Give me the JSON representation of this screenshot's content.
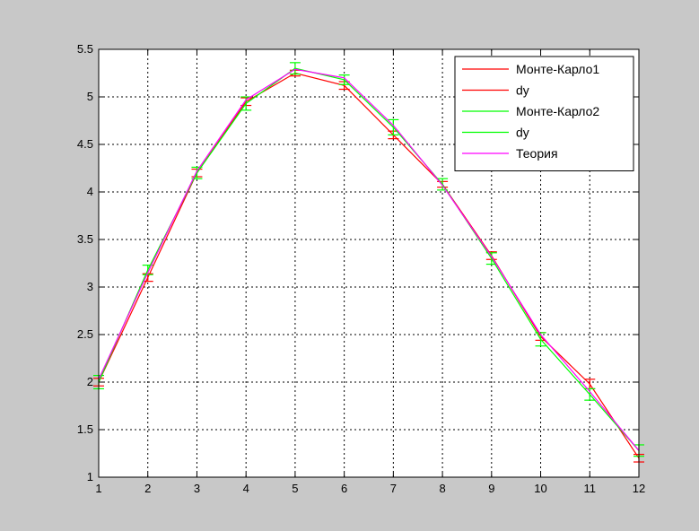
{
  "chart_data": {
    "type": "line",
    "title": "",
    "xlabel": "",
    "ylabel": "",
    "xlim": [
      1,
      12
    ],
    "ylim": [
      1,
      5.5
    ],
    "xticks": [
      1,
      2,
      3,
      4,
      5,
      6,
      7,
      8,
      9,
      10,
      11,
      12
    ],
    "yticks": [
      1,
      1.5,
      2,
      2.5,
      3,
      3.5,
      4,
      4.5,
      5,
      5.5
    ],
    "xtick_labels": [
      "1",
      "2",
      "3",
      "4",
      "5",
      "6",
      "7",
      "8",
      "9",
      "10",
      "11",
      "12"
    ],
    "ytick_labels": [
      "1",
      "1.5",
      "2",
      "2.5",
      "3",
      "3.5",
      "4",
      "4.5",
      "5",
      "5.5"
    ],
    "grid": true,
    "grid_style": "dotted",
    "legend_position": "top-right",
    "legend": [
      "Монте-Карло1",
      "dy",
      "Монте-Карло2",
      "dy",
      "Теория"
    ],
    "x": [
      1,
      2,
      3,
      4,
      5,
      6,
      7,
      8,
      9,
      10,
      11,
      12
    ],
    "series": [
      {
        "name": "Монте-Карло1",
        "color": "#ff0000",
        "values": [
          2.0,
          3.1,
          4.2,
          4.95,
          5.25,
          5.12,
          4.6,
          4.08,
          3.33,
          2.48,
          1.98,
          1.2
        ],
        "dy": [
          0.04,
          0.04,
          0.04,
          0.04,
          0.03,
          0.04,
          0.04,
          0.03,
          0.04,
          0.04,
          0.05,
          0.04
        ]
      },
      {
        "name": "Монте-Карло2",
        "color": "#00ff00",
        "values": [
          2.0,
          3.18,
          4.2,
          4.93,
          5.3,
          5.18,
          4.68,
          4.08,
          3.3,
          2.45,
          1.87,
          1.28
        ],
        "dy": [
          0.07,
          0.05,
          0.06,
          0.07,
          0.06,
          0.05,
          0.08,
          0.06,
          0.06,
          0.07,
          0.06,
          0.06
        ]
      },
      {
        "name": "Теория",
        "color": "#ff00ff",
        "values": [
          2.03,
          3.15,
          4.22,
          4.97,
          5.29,
          5.2,
          4.7,
          4.07,
          3.32,
          2.5,
          1.9,
          1.28
        ]
      }
    ]
  }
}
